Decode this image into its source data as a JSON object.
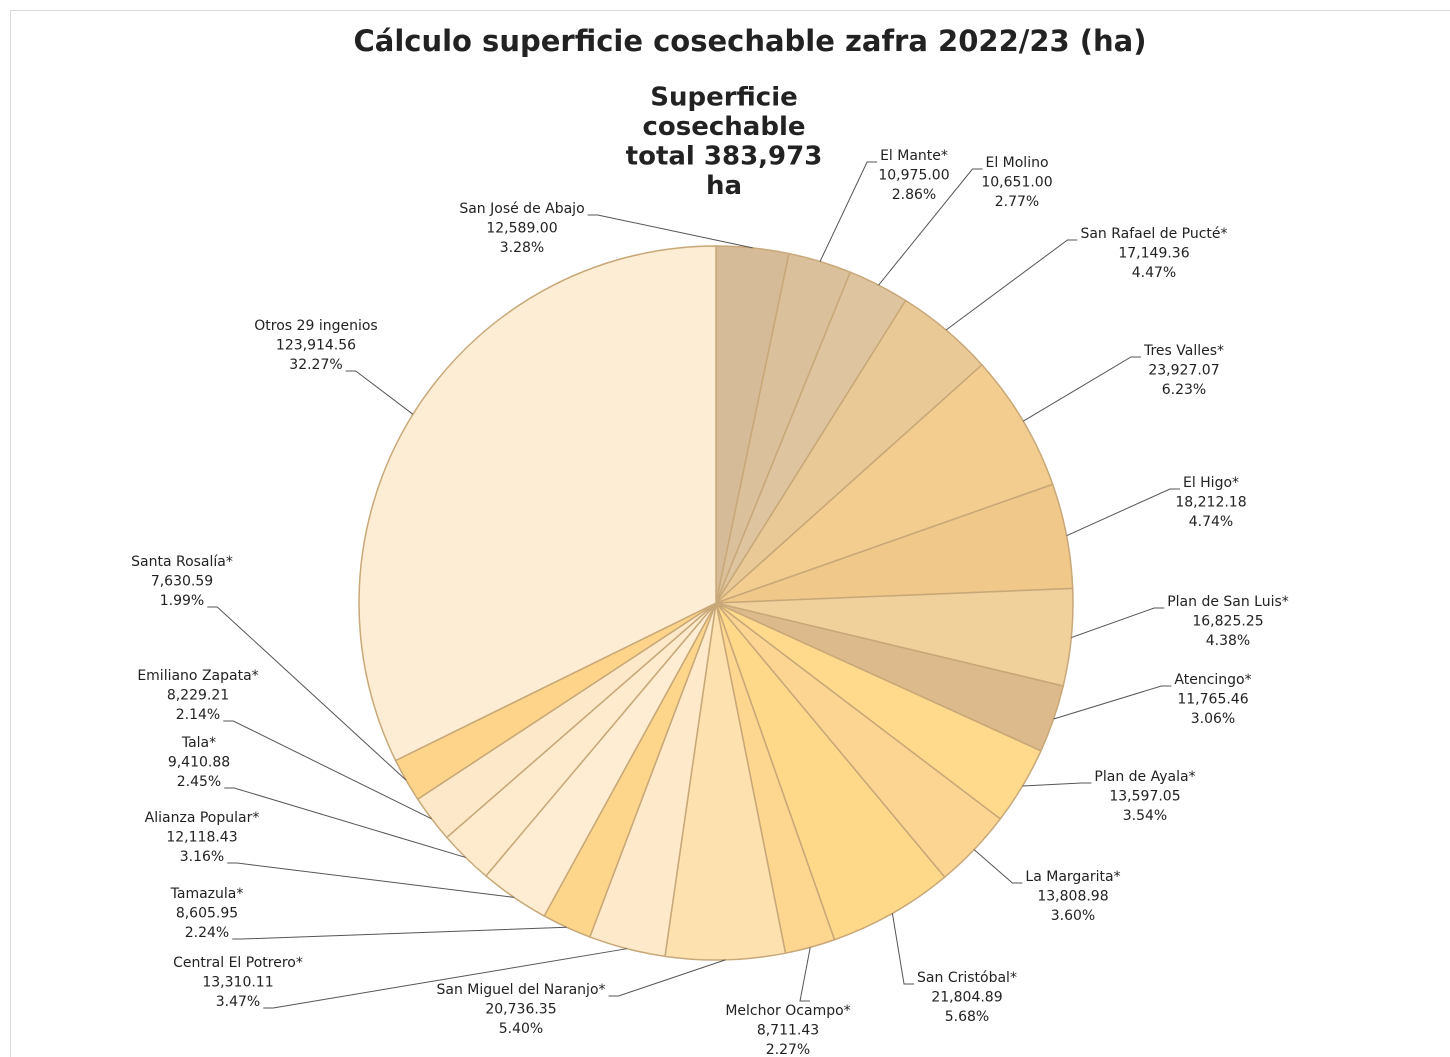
{
  "chart_data": {
    "type": "pie",
    "title": "Cálculo superficie cosechable zafra 2022/23 (ha)",
    "annotation": [
      "Superficie",
      "cosechable",
      "total  383,973",
      "ha"
    ],
    "categories": [
      "San José de Abajo",
      "El Mante*",
      "El Molino",
      "San Rafael de Pucté*",
      "Tres Valles*",
      "El Higo*",
      "Plan de San Luis*",
      "Atencingo*",
      "Plan de Ayala*",
      "La Margarita*",
      "San Cristóbal*",
      "Melchor Ocampo*",
      "San Miguel del Naranjo*",
      "Central El Potrero*",
      "Tamazula*",
      "Alianza Popular*",
      "Tala*",
      "Emiliano Zapata*",
      "Santa Rosalía*",
      "Otros 29 ingenios"
    ],
    "values": [
      12589.0,
      10975.0,
      10651.0,
      17149.36,
      23927.07,
      18212.18,
      16825.25,
      11765.46,
      13597.05,
      13808.98,
      21804.89,
      8711.43,
      20736.35,
      13310.11,
      8605.95,
      12118.43,
      9410.88,
      8229.21,
      7630.59,
      123914.56
    ],
    "value_labels": [
      "12,589.00",
      "10,975.00",
      "10,651.00",
      "17,149.36",
      "23,927.07",
      "18,212.18",
      "16,825.25",
      "11,765.46",
      "13,597.05",
      "13,808.98",
      "21,804.89",
      "8,711.43",
      "20,736.35",
      "13,310.11",
      "8,605.95",
      "12,118.43",
      "9,410.88",
      "8,229.21",
      "7,630.59",
      "123,914.56"
    ],
    "percentages": [
      3.28,
      2.86,
      2.77,
      4.47,
      6.23,
      4.74,
      4.38,
      3.06,
      3.54,
      3.6,
      5.68,
      2.27,
      5.4,
      3.47,
      2.24,
      3.16,
      2.45,
      2.14,
      1.99,
      32.27
    ],
    "percentage_labels": [
      "3.28%",
      "2.86%",
      "2.77%",
      "4.47%",
      "6.23%",
      "4.74%",
      "4.38%",
      "3.06%",
      "3.54%",
      "3.60%",
      "5.68%",
      "2.27%",
      "5.40%",
      "3.47%",
      "2.24%",
      "3.16%",
      "2.45%",
      "2.14%",
      "1.99%",
      "32.27%"
    ],
    "colors": [
      "#d6bb98",
      "#dbc19b",
      "#dec59f",
      "#e9c996",
      "#f2cd8f",
      "#efc88a",
      "#f0d09b",
      "#ddba8b",
      "#ffd98c",
      "#fcd593",
      "#ffd98a",
      "#fdd690",
      "#fde2b0",
      "#feeaca",
      "#fdd68c",
      "#feedd2",
      "#feeacd",
      "#fde9ca",
      "#fdd48a",
      "#fdedd4"
    ]
  }
}
